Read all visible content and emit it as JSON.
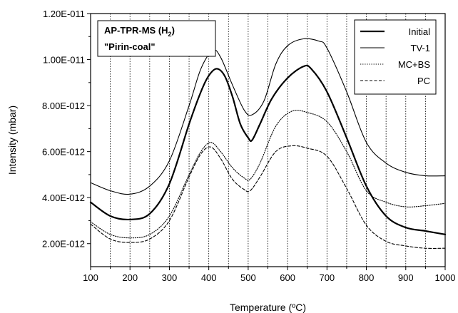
{
  "chart_data": {
    "type": "line",
    "xlabel": "Temperature (ºC)",
    "ylabel": "Intensity (mbar)",
    "xlim": [
      100,
      1000
    ],
    "ylim": [
      1e-12,
      1.2e-11
    ],
    "x_ticks": [
      100,
      200,
      300,
      400,
      500,
      600,
      700,
      800,
      900,
      1000
    ],
    "x_tick_labels": [
      "100",
      "200",
      "300",
      "400",
      "500",
      "600",
      "700",
      "800",
      "900",
      "1000"
    ],
    "y_ticks": [
      2e-12,
      4e-12,
      6e-12,
      8e-12,
      1e-11,
      1.2e-11
    ],
    "y_tick_labels": [
      "2.00E-012",
      "4.00E-012",
      "6.00E-012",
      "8.00E-012",
      "1.00E-011",
      "1.20E-011"
    ],
    "vertical_gridlines_x": [
      150,
      200,
      250,
      300,
      350,
      400,
      450,
      500,
      550,
      600,
      650,
      700,
      750,
      800,
      850,
      900,
      950
    ],
    "grid": "vertical dotted lines every 50 ºC",
    "annotation": {
      "line1": "AP-TPR-MS (H",
      "line1_sub": "2",
      "line1_end": ")",
      "line2": "\"Pirin-coal\""
    },
    "legend_position": "top-right",
    "series": [
      {
        "name": "Initial",
        "style": "thick-solid",
        "color": "#000000",
        "x": [
          100,
          150,
          200,
          250,
          300,
          350,
          380,
          400,
          420,
          440,
          460,
          480,
          500,
          510,
          530,
          560,
          600,
          640,
          660,
          700,
          750,
          800,
          850,
          900,
          950,
          1000
        ],
        "y": [
          3.8e-12,
          3.2e-12,
          3.05e-12,
          3.3e-12,
          4.6e-12,
          7.2e-12,
          8.6e-12,
          9.3e-12,
          9.6e-12,
          9.3e-12,
          8.4e-12,
          7.2e-12,
          6.6e-12,
          6.5e-12,
          7.2e-12,
          8.3e-12,
          9.2e-12,
          9.7e-12,
          9.6e-12,
          8.6e-12,
          6.6e-12,
          4.5e-12,
          3.2e-12,
          2.7e-12,
          2.55e-12,
          2.4e-12
        ]
      },
      {
        "name": "TV-1",
        "style": "solid",
        "color": "#000000",
        "x": [
          100,
          150,
          200,
          250,
          300,
          350,
          380,
          410,
          430,
          460,
          490,
          510,
          540,
          570,
          600,
          640,
          680,
          700,
          750,
          800,
          850,
          900,
          950,
          1000
        ],
        "y": [
          4.65e-12,
          4.3e-12,
          4.15e-12,
          4.5e-12,
          5.6e-12,
          8e-12,
          9.6e-12,
          1.04e-11,
          1.01e-11,
          8.9e-12,
          7.8e-12,
          7.6e-12,
          8.2e-12,
          9.8e-12,
          1.06e-11,
          1.09e-11,
          1.08e-11,
          1.05e-11,
          8.6e-12,
          6.4e-12,
          5.5e-12,
          5.1e-12,
          4.95e-12,
          4.95e-12
        ]
      },
      {
        "name": "MC+BS",
        "style": "dotted",
        "color": "#000000",
        "x": [
          100,
          150,
          200,
          250,
          300,
          350,
          380,
          405,
          430,
          460,
          490,
          505,
          530,
          570,
          610,
          650,
          700,
          750,
          800,
          850,
          900,
          950,
          1000
        ],
        "y": [
          2.95e-12,
          2.4e-12,
          2.25e-12,
          2.4e-12,
          3.2e-12,
          5e-12,
          6e-12,
          6.4e-12,
          6e-12,
          5.3e-12,
          4.85e-12,
          4.8e-12,
          5.5e-12,
          7.1e-12,
          7.75e-12,
          7.7e-12,
          7.3e-12,
          6e-12,
          4.3e-12,
          3.8e-12,
          3.6e-12,
          3.65e-12,
          3.75e-12
        ]
      },
      {
        "name": "PC",
        "style": "dashed",
        "color": "#000000",
        "x": [
          100,
          150,
          200,
          250,
          300,
          350,
          380,
          405,
          430,
          460,
          490,
          505,
          530,
          570,
          610,
          650,
          700,
          750,
          800,
          850,
          900,
          950,
          1000
        ],
        "y": [
          2.85e-12,
          2.2e-12,
          2.05e-12,
          2.2e-12,
          3e-12,
          4.9e-12,
          5.9e-12,
          6.2e-12,
          5.7e-12,
          4.8e-12,
          4.35e-12,
          4.3e-12,
          4.9e-12,
          6e-12,
          6.25e-12,
          6.15e-12,
          5.8e-12,
          4.4e-12,
          2.8e-12,
          2.1e-12,
          1.9e-12,
          1.8e-12,
          1.8e-12
        ]
      }
    ]
  }
}
